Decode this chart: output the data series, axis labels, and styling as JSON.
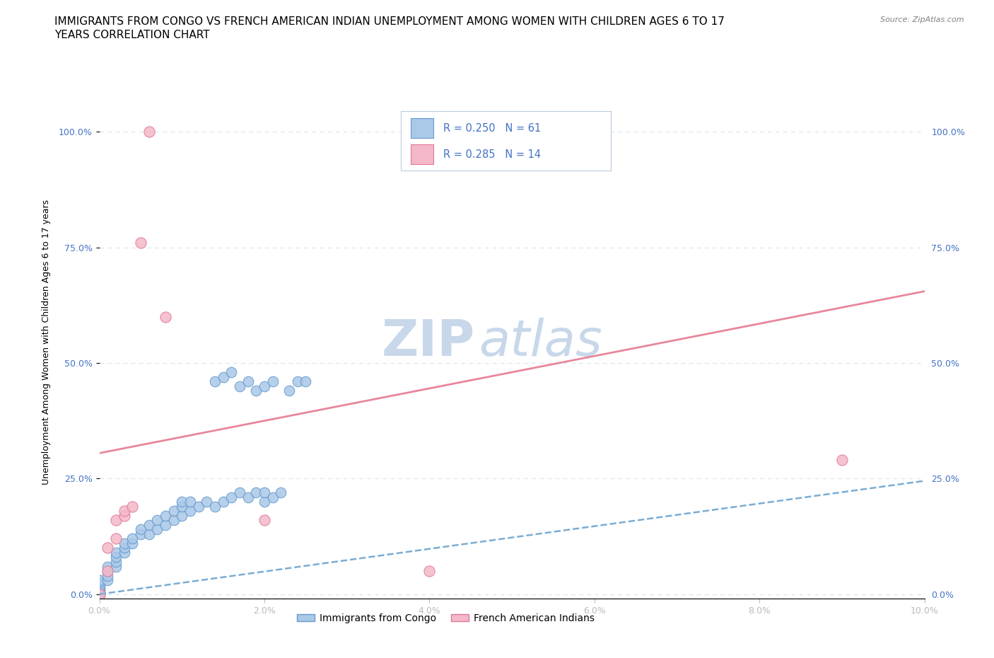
{
  "title_line1": "IMMIGRANTS FROM CONGO VS FRENCH AMERICAN INDIAN UNEMPLOYMENT AMONG WOMEN WITH CHILDREN AGES 6 TO 17",
  "title_line2": "YEARS CORRELATION CHART",
  "source": "Source: ZipAtlas.com",
  "ylabel": "Unemployment Among Women with Children Ages 6 to 17 years",
  "xlim": [
    0.0,
    0.1
  ],
  "ylim": [
    -0.01,
    1.1
  ],
  "yticks": [
    0.0,
    0.25,
    0.5,
    0.75,
    1.0
  ],
  "ytick_labels": [
    "0.0%",
    "25.0%",
    "50.0%",
    "75.0%",
    "100.0%"
  ],
  "xticks": [
    0.0,
    0.02,
    0.04,
    0.06,
    0.08,
    0.1
  ],
  "xtick_labels": [
    "0.0%",
    "2.0%",
    "4.0%",
    "6.0%",
    "8.0%",
    "10.0%"
  ],
  "series1_label": "Immigrants from Congo",
  "series1_color": "#aac8e8",
  "series1_edge": "#6699cc",
  "series1_R": 0.25,
  "series1_N": 61,
  "series2_label": "French American Indians",
  "series2_color": "#f4b8c8",
  "series2_edge": "#e07898",
  "series2_R": 0.285,
  "series2_N": 14,
  "legend_R_color": "#4472c4",
  "watermark_zip": "ZIP",
  "watermark_atlas": "atlas",
  "watermark_color": "#c8d8ea",
  "trendline1_color": "#7aadd4",
  "trendline1_style": "--",
  "trendline2_color": "#e8879a",
  "trendline2_style": "-",
  "background_color": "#ffffff",
  "grid_color": "#d8e4f0",
  "title_fontsize": 11,
  "axis_label_fontsize": 9,
  "tick_fontsize": 9,
  "legend_fontsize": 10,
  "series1_x": [
    0.0,
    0.0,
    0.0,
    0.0,
    0.0,
    0.0,
    0.0,
    0.0,
    0.0,
    0.0,
    0.001,
    0.001,
    0.001,
    0.001,
    0.002,
    0.002,
    0.002,
    0.002,
    0.003,
    0.003,
    0.003,
    0.004,
    0.004,
    0.005,
    0.005,
    0.006,
    0.006,
    0.007,
    0.007,
    0.008,
    0.008,
    0.009,
    0.009,
    0.01,
    0.01,
    0.01,
    0.011,
    0.011,
    0.012,
    0.013,
    0.014,
    0.015,
    0.016,
    0.017,
    0.018,
    0.019,
    0.02,
    0.02,
    0.021,
    0.022,
    0.023,
    0.024,
    0.025,
    0.014,
    0.015,
    0.016,
    0.017,
    0.018,
    0.019,
    0.02,
    0.021
  ],
  "series1_y": [
    0.0,
    0.0,
    0.0,
    0.0,
    0.005,
    0.01,
    0.015,
    0.02,
    0.025,
    0.03,
    0.03,
    0.04,
    0.05,
    0.06,
    0.06,
    0.07,
    0.08,
    0.09,
    0.09,
    0.1,
    0.11,
    0.11,
    0.12,
    0.13,
    0.14,
    0.13,
    0.15,
    0.14,
    0.16,
    0.15,
    0.17,
    0.16,
    0.18,
    0.17,
    0.19,
    0.2,
    0.18,
    0.2,
    0.19,
    0.2,
    0.19,
    0.2,
    0.21,
    0.22,
    0.21,
    0.22,
    0.2,
    0.22,
    0.21,
    0.22,
    0.44,
    0.46,
    0.46,
    0.46,
    0.47,
    0.48,
    0.45,
    0.46,
    0.44,
    0.45,
    0.46
  ],
  "series2_x": [
    0.0,
    0.001,
    0.001,
    0.002,
    0.002,
    0.003,
    0.003,
    0.004,
    0.005,
    0.006,
    0.008,
    0.02,
    0.04,
    0.09
  ],
  "series2_y": [
    0.0,
    0.05,
    0.1,
    0.12,
    0.16,
    0.17,
    0.18,
    0.19,
    0.76,
    1.0,
    0.6,
    0.16,
    0.05,
    0.29
  ],
  "trendline1_x0": 0.0,
  "trendline1_y0": 0.0,
  "trendline1_x1": 0.1,
  "trendline1_y1": 0.245,
  "trendline2_x0": 0.0,
  "trendline2_y0": 0.305,
  "trendline2_x1": 0.1,
  "trendline2_y1": 0.655
}
